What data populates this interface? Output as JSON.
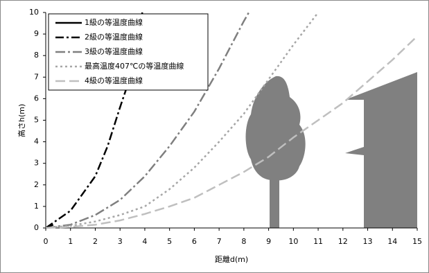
{
  "chart_data": {
    "type": "line",
    "xlabel": "距離d(m)",
    "ylabel": "高さh(m)",
    "xlim": [
      0,
      15
    ],
    "xticks": [
      0,
      1,
      2,
      3,
      4,
      5,
      6,
      7,
      8,
      9,
      10,
      11,
      12,
      13,
      14,
      15
    ],
    "ylim": [
      0,
      10
    ],
    "yticks": [
      0,
      1,
      2,
      3,
      4,
      5,
      6,
      7,
      8,
      9,
      10
    ],
    "grid": false,
    "legend": "upper left",
    "series": [
      {
        "name": "1級の等温度曲線",
        "color": "#000000",
        "dash": "none",
        "x": [
          0,
          0.3
        ],
        "values": [
          0,
          0.15
        ]
      },
      {
        "name": "2級の等温度曲線",
        "color": "#000000",
        "dash": "12 4 3 4",
        "x": [
          0,
          1,
          1.5,
          2,
          2.5,
          3,
          3.5,
          3.9
        ],
        "values": [
          0,
          0.8,
          1.6,
          2.4,
          3.8,
          5.6,
          7.3,
          10
        ]
      },
      {
        "name": "3級の等温度曲線",
        "color": "#7f7f7f",
        "dash": "14 4 3 4",
        "x": [
          0,
          1,
          2,
          3,
          4,
          5,
          6,
          7,
          8,
          8.2
        ],
        "values": [
          0,
          0.15,
          0.6,
          1.3,
          2.4,
          3.8,
          5.4,
          7.4,
          9.6,
          10
        ]
      },
      {
        "name": "最高温度407℃の等温度曲線",
        "color": "#a6a6a6",
        "dash": "3 4",
        "x": [
          0,
          1,
          2,
          3,
          4,
          5,
          6,
          7,
          8,
          9,
          10,
          11
        ],
        "values": [
          0,
          0.1,
          0.3,
          0.6,
          1,
          1.8,
          2.8,
          4,
          5.3,
          6.9,
          8.5,
          10
        ]
      },
      {
        "name": "4級の等温度曲線",
        "color": "#bfbfbf",
        "dash": "14 6",
        "x": [
          0,
          1,
          2,
          3,
          4,
          5,
          6,
          7,
          8,
          9,
          10,
          11,
          12,
          13,
          14,
          15
        ],
        "values": [
          0,
          0.05,
          0.15,
          0.35,
          0.65,
          1,
          1.4,
          2,
          2.6,
          3.3,
          4.2,
          5,
          5.8,
          6.8,
          7.8,
          8.9
        ]
      }
    ]
  }
}
